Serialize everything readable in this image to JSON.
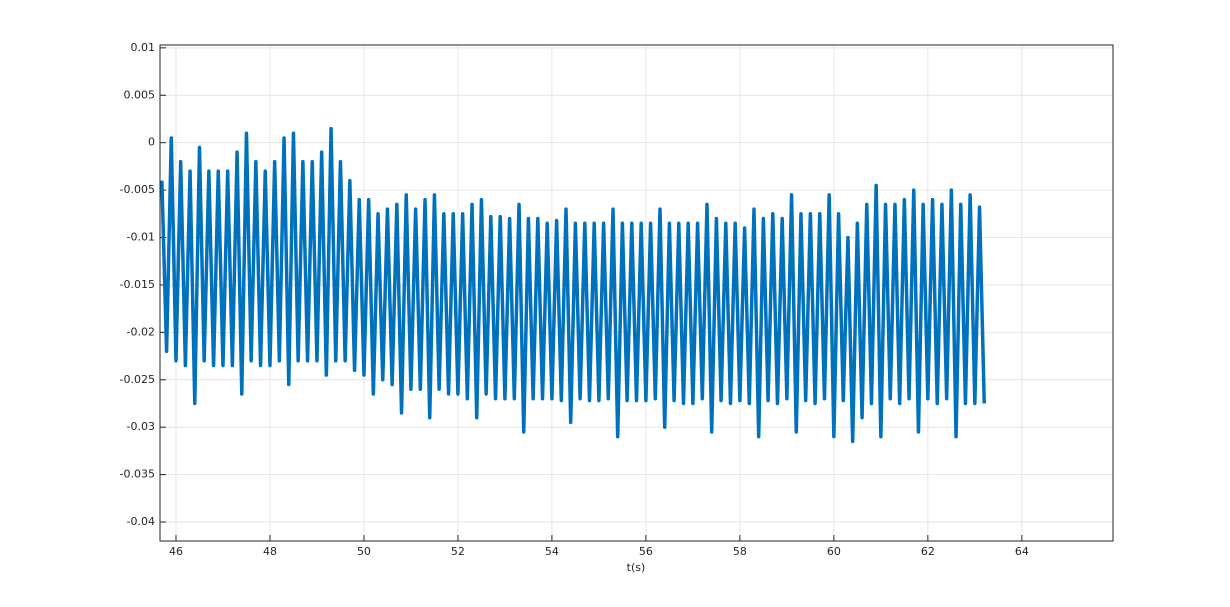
{
  "chart_data": {
    "type": "line",
    "xlabel": "t(s)",
    "color": "#0072bd",
    "grid": true,
    "xlim": [
      45.66,
      65.94
    ],
    "ylim": [
      -0.042,
      0.0103
    ],
    "xticks": [
      46,
      48,
      50,
      52,
      54,
      56,
      58,
      60,
      62,
      64
    ],
    "yticks": [
      0.01,
      0.005,
      0,
      -0.005,
      -0.01,
      -0.015,
      -0.02,
      -0.025,
      -0.03,
      -0.035,
      -0.04
    ],
    "x": [
      45.7,
      45.8,
      45.9,
      46.0,
      46.1,
      46.2,
      46.3,
      46.4,
      46.5,
      46.6,
      46.7,
      46.8,
      46.9,
      47.0,
      47.1,
      47.2,
      47.3,
      47.4,
      47.5,
      47.6,
      47.7,
      47.8,
      47.9,
      48.0,
      48.1,
      48.2,
      48.3,
      48.4,
      48.5,
      48.6,
      48.7,
      48.8,
      48.9,
      49.0,
      49.1,
      49.2,
      49.3,
      49.4,
      49.5,
      49.6,
      49.7,
      49.8,
      49.9,
      50.0,
      50.1,
      50.2,
      50.3,
      50.4,
      50.5,
      50.6,
      50.7,
      50.8,
      50.9,
      51.0,
      51.1,
      51.2,
      51.3,
      51.4,
      51.5,
      51.6,
      51.7,
      51.8,
      51.9,
      52.0,
      52.1,
      52.2,
      52.3,
      52.4,
      52.5,
      52.6,
      52.7,
      52.8,
      52.9,
      53.0,
      53.1,
      53.2,
      53.3,
      53.4,
      53.5,
      53.6,
      53.7,
      53.8,
      53.9,
      54.0,
      54.1,
      54.2,
      54.3,
      54.4,
      54.5,
      54.6,
      54.7,
      54.8,
      54.9,
      55.0,
      55.1,
      55.2,
      55.3,
      55.4,
      55.5,
      55.6,
      55.7,
      55.8,
      55.9,
      56.0,
      56.1,
      56.2,
      56.3,
      56.4,
      56.5,
      56.6,
      56.7,
      56.8,
      56.9,
      57.0,
      57.1,
      57.2,
      57.3,
      57.4,
      57.5,
      57.6,
      57.7,
      57.8,
      57.9,
      58.0,
      58.1,
      58.2,
      58.3,
      58.4,
      58.5,
      58.6,
      58.7,
      58.8,
      58.9,
      59.0,
      59.1,
      59.2,
      59.3,
      59.4,
      59.5,
      59.6,
      59.7,
      59.8,
      59.9,
      60.0,
      60.1,
      60.2,
      60.3,
      60.4,
      60.5,
      60.6,
      60.7,
      60.8,
      60.9,
      61.0,
      61.1,
      61.2,
      61.3,
      61.4,
      61.5,
      61.6,
      61.7,
      61.8,
      61.9,
      62.0,
      62.1,
      62.2,
      62.3,
      62.4,
      62.5,
      62.6,
      62.7,
      62.8,
      62.9,
      63.0,
      63.1,
      63.2
    ],
    "values": [
      -0.004,
      -0.022,
      0.0005,
      -0.023,
      -0.002,
      -0.0235,
      -0.003,
      -0.0275,
      -0.0005,
      -0.023,
      -0.003,
      -0.0235,
      -0.003,
      -0.0235,
      -0.003,
      -0.0235,
      -0.001,
      -0.0265,
      0.001,
      -0.023,
      -0.002,
      -0.0235,
      -0.003,
      -0.0235,
      -0.002,
      -0.023,
      0.0005,
      -0.0255,
      0.001,
      -0.023,
      -0.002,
      -0.023,
      -0.002,
      -0.023,
      -0.001,
      -0.0245,
      0.0015,
      -0.023,
      -0.002,
      -0.023,
      -0.004,
      -0.024,
      -0.006,
      -0.0245,
      -0.006,
      -0.0265,
      -0.0075,
      -0.025,
      -0.007,
      -0.0255,
      -0.0065,
      -0.0285,
      -0.0055,
      -0.026,
      -0.007,
      -0.026,
      -0.006,
      -0.029,
      -0.0055,
      -0.026,
      -0.0075,
      -0.0265,
      -0.0075,
      -0.0265,
      -0.0075,
      -0.027,
      -0.0065,
      -0.029,
      -0.006,
      -0.0265,
      -0.0078,
      -0.027,
      -0.0078,
      -0.027,
      -0.008,
      -0.027,
      -0.0065,
      -0.0305,
      -0.008,
      -0.027,
      -0.008,
      -0.027,
      -0.0085,
      -0.027,
      -0.0082,
      -0.0272,
      -0.007,
      -0.0295,
      -0.0085,
      -0.027,
      -0.0085,
      -0.0272,
      -0.0085,
      -0.0272,
      -0.0085,
      -0.027,
      -0.007,
      -0.031,
      -0.0085,
      -0.0272,
      -0.0085,
      -0.0272,
      -0.0085,
      -0.0272,
      -0.0085,
      -0.027,
      -0.007,
      -0.03,
      -0.0085,
      -0.0272,
      -0.0085,
      -0.0275,
      -0.0085,
      -0.0275,
      -0.0085,
      -0.027,
      -0.0065,
      -0.0305,
      -0.008,
      -0.0272,
      -0.0085,
      -0.0275,
      -0.0085,
      -0.0272,
      -0.009,
      -0.0275,
      -0.007,
      -0.031,
      -0.008,
      -0.0272,
      -0.0075,
      -0.0275,
      -0.008,
      -0.027,
      -0.0055,
      -0.0305,
      -0.0075,
      -0.0272,
      -0.0075,
      -0.0275,
      -0.0075,
      -0.027,
      -0.0055,
      -0.031,
      -0.0075,
      -0.0272,
      -0.01,
      -0.0315,
      -0.0085,
      -0.029,
      -0.0065,
      -0.0275,
      -0.0045,
      -0.031,
      -0.0065,
      -0.027,
      -0.0065,
      -0.0275,
      -0.006,
      -0.027,
      -0.005,
      -0.0305,
      -0.0065,
      -0.027,
      -0.006,
      -0.0275,
      -0.0065,
      -0.027,
      -0.005,
      -0.031,
      -0.0065,
      -0.0275,
      -0.0055,
      -0.0275,
      -0.0068,
      -0.0275
    ]
  }
}
